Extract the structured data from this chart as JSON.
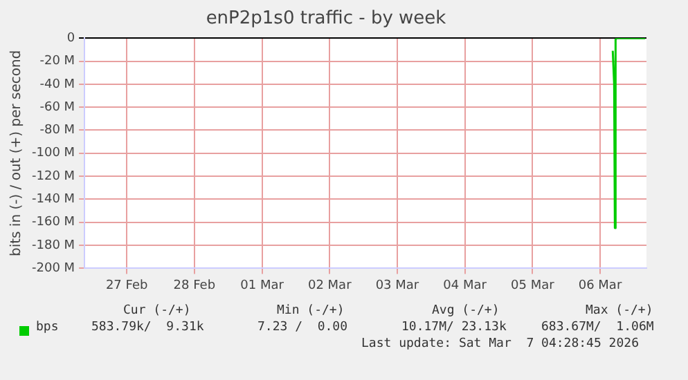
{
  "chart_data": {
    "type": "line",
    "title": "enP2p1s0 traffic - by week",
    "ylabel": "bits in (-) / out (+) per second",
    "series": [
      {
        "name": "bps",
        "color": "#00cc00",
        "x": [
          "2026-03-06T16:30",
          "2026-03-06T17:00",
          "2026-03-06T17:15",
          "2026-03-06T17:30",
          "2026-03-06T18:00",
          "2026-03-06T22:00",
          "2026-03-07T02:00",
          "2026-03-07T04:00"
        ],
        "values": [
          -11000000,
          -40000000,
          -165000000,
          -1000000,
          0,
          0,
          0,
          0
        ]
      }
    ],
    "xlim": [
      "2026-02-26T21:00",
      "2026-03-07T04:28"
    ],
    "xticks": [
      {
        "value": "2026-02-27T12:00",
        "label": "27 Feb"
      },
      {
        "value": "2026-02-28T12:00",
        "label": "28 Feb"
      },
      {
        "value": "2026-03-01T12:00",
        "label": "01 Mar"
      },
      {
        "value": "2026-03-02T12:00",
        "label": "02 Mar"
      },
      {
        "value": "2026-03-03T12:00",
        "label": "03 Mar"
      },
      {
        "value": "2026-03-04T12:00",
        "label": "04 Mar"
      },
      {
        "value": "2026-03-05T12:00",
        "label": "05 Mar"
      },
      {
        "value": "2026-03-06T12:00",
        "label": "06 Mar"
      }
    ],
    "ylim": [
      -200000000,
      0
    ],
    "yticks": [
      {
        "value": -200000000,
        "label": "-200 M"
      },
      {
        "value": -180000000,
        "label": "-180 M"
      },
      {
        "value": -160000000,
        "label": "-160 M"
      },
      {
        "value": -140000000,
        "label": "-140 M"
      },
      {
        "value": -120000000,
        "label": "-120 M"
      },
      {
        "value": -100000000,
        "label": "-100 M"
      },
      {
        "value": -80000000,
        "label": "-80 M"
      },
      {
        "value": -60000000,
        "label": "-60 M"
      },
      {
        "value": -40000000,
        "label": "-40 M"
      },
      {
        "value": -20000000,
        "label": "-20 M"
      },
      0
    ],
    "grid": true,
    "legend": "bottom left",
    "marker": "none",
    "line_style": "solid",
    "annotations": [
      "Cur (-/+)",
      "Min (-/+)",
      "Avg (-/+)",
      "Max (-/+)",
      "583.79k/  9.31k",
      "7.23 /  0.00",
      "10.17M/ 23.13k",
      "683.67M/  1.06M",
      "Last update: Sat Mar  7 04:28:45 2026"
    ]
  }
}
